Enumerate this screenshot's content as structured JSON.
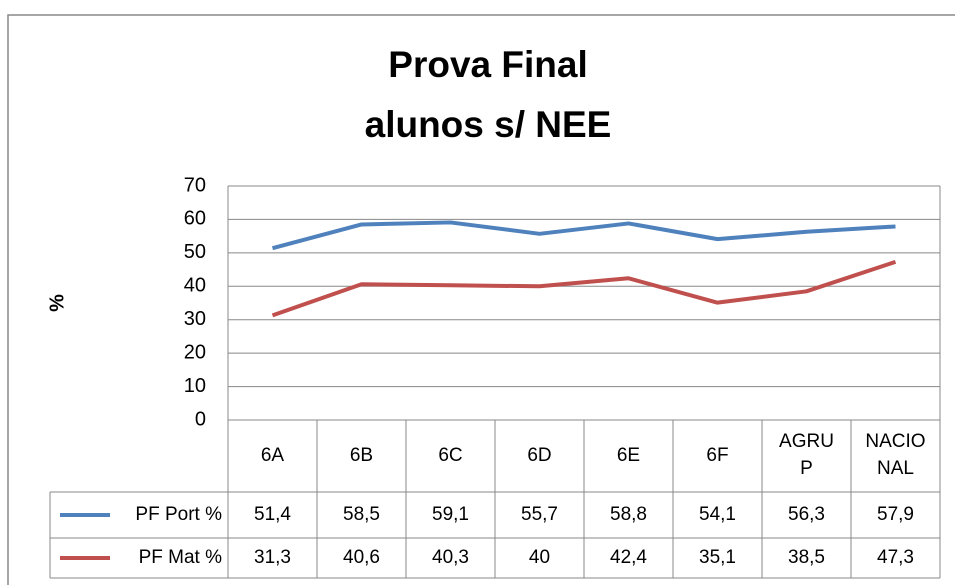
{
  "chart_data": {
    "type": "line",
    "title": [
      "Prova Final",
      "alunos s/ NEE"
    ],
    "y_label": "%",
    "categories": [
      "6A",
      "6B",
      "6C",
      "6D",
      "6E",
      "6F",
      "AGRUP",
      "NACIONAL"
    ],
    "series": [
      {
        "name": "PF Port %",
        "color": "#4f81bd",
        "values": [
          51.4,
          58.5,
          59.1,
          55.7,
          58.8,
          54.1,
          56.3,
          57.9
        ],
        "value_labels": [
          "51,4",
          "58,5",
          "59,1",
          "55,7",
          "58,8",
          "54,1",
          "56,3",
          "57,9"
        ]
      },
      {
        "name": "PF Mat %",
        "color": "#c0504d",
        "values": [
          31.3,
          40.6,
          40.3,
          40,
          42.4,
          35.1,
          38.5,
          47.3
        ],
        "value_labels": [
          "31,3",
          "40,6",
          "40,3",
          "40",
          "42,4",
          "35,1",
          "38,5",
          "47,3"
        ]
      }
    ],
    "ylim": [
      0,
      70
    ],
    "yticks": [
      0,
      10,
      20,
      30,
      40,
      50,
      60,
      70
    ],
    "grid": true
  }
}
